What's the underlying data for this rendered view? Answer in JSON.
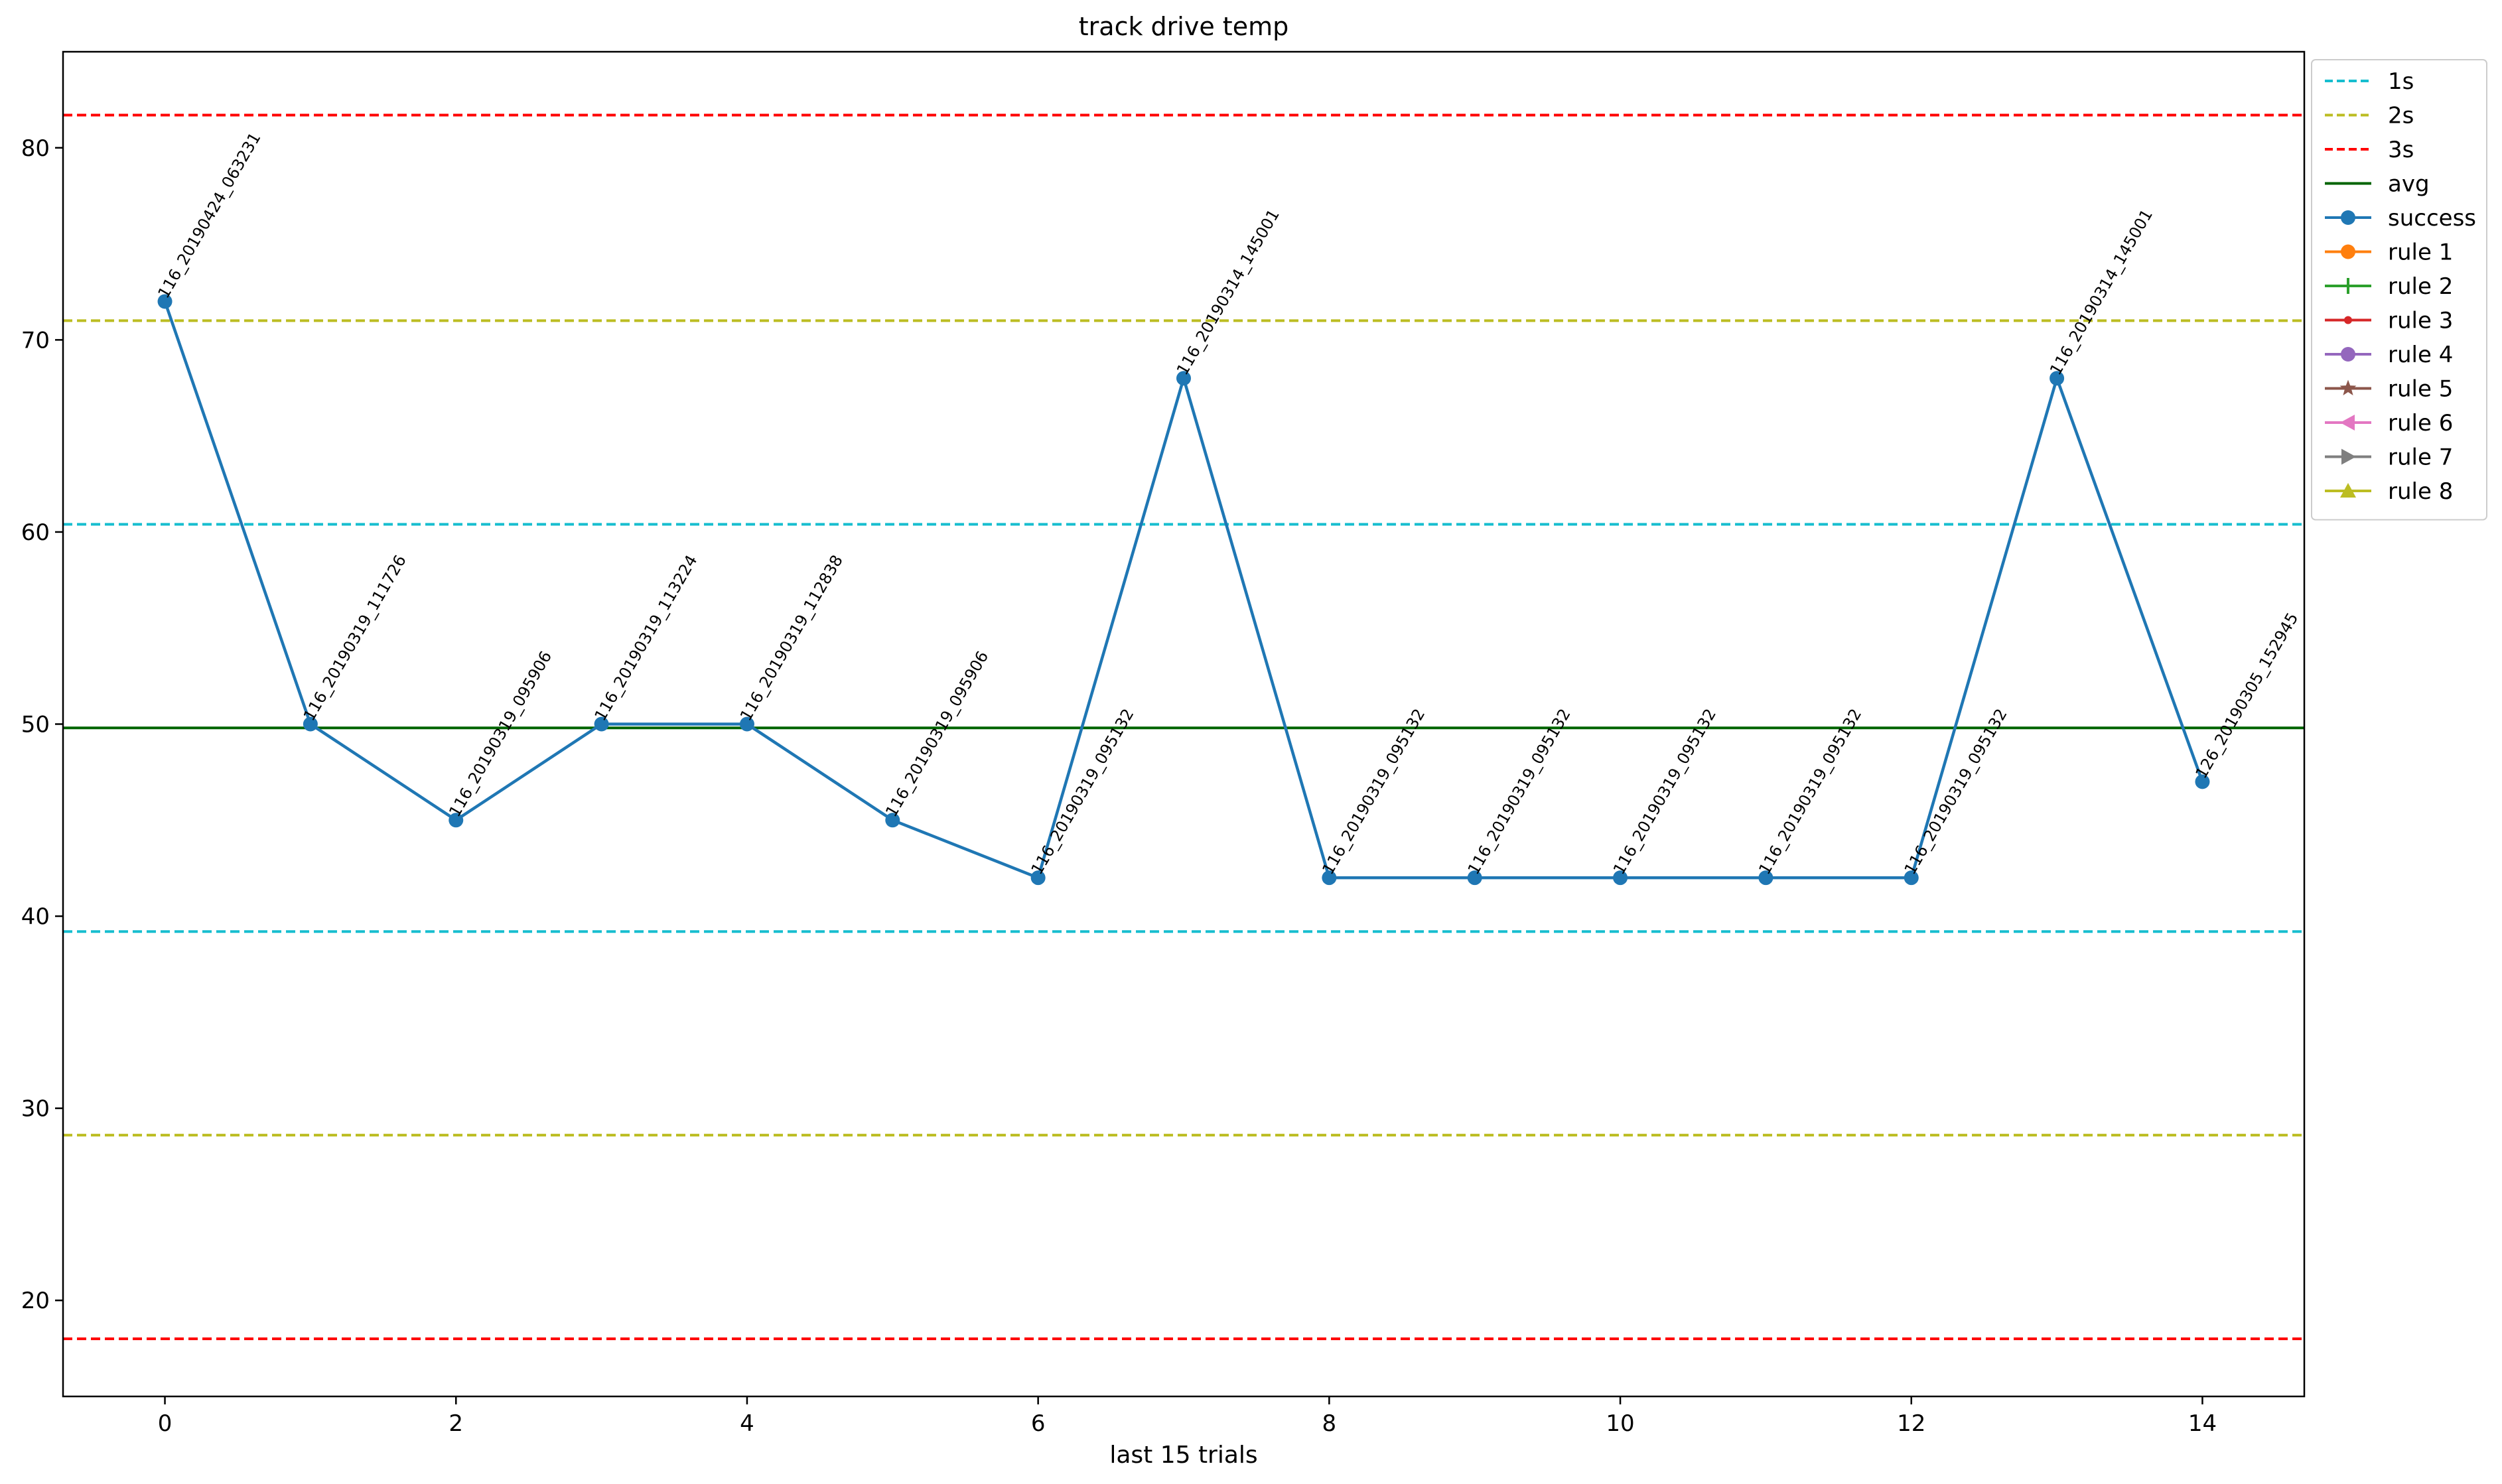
{
  "chart_data": {
    "type": "line",
    "title": "track drive temp",
    "xlabel": "last 15 trials",
    "ylabel": "",
    "xlim": [
      -0.7,
      14.7
    ],
    "ylim": [
      15,
      85
    ],
    "xticks": [
      0,
      2,
      4,
      6,
      8,
      10,
      12,
      14
    ],
    "yticks": [
      20,
      30,
      40,
      50,
      60,
      70,
      80
    ],
    "grid": false,
    "legend_position": "outside right, top",
    "reference_lines": [
      {
        "name": "1s",
        "style": "dashed",
        "color": "#17becf",
        "values": [
          60.4,
          39.2
        ]
      },
      {
        "name": "2s",
        "style": "dashed",
        "color": "#bcbd22",
        "values": [
          71.0,
          28.6
        ]
      },
      {
        "name": "3s",
        "style": "dashed",
        "color": "#ff0000",
        "values": [
          81.7,
          18.0
        ]
      },
      {
        "name": "avg",
        "style": "solid",
        "color": "#006400",
        "values": [
          49.8
        ]
      }
    ],
    "series": [
      {
        "name": "success",
        "color": "#1f77b4",
        "x": [
          0,
          1,
          2,
          3,
          4,
          5,
          6,
          7,
          8,
          9,
          10,
          11,
          12,
          13,
          14
        ],
        "y": [
          72,
          50,
          45,
          50,
          50,
          45,
          42,
          68,
          42,
          42,
          42,
          42,
          42,
          68,
          47
        ],
        "point_labels": [
          "116_20190424_063231",
          "116_20190319_111726",
          "116_20190319_095906",
          "116_20190319_113224",
          "116_20190319_112838",
          "116_20190319_095906",
          "116_20190319_095132",
          "116_20190314_145001",
          "116_20190319_095132",
          "116_20190319_095132",
          "116_20190319_095132",
          "116_20190319_095132",
          "116_20190319_095132",
          "116_20190314_145001",
          "126_20190305_152945"
        ]
      }
    ],
    "legend": [
      {
        "label": "1s",
        "color": "#17becf",
        "style": "dashed",
        "marker": "none"
      },
      {
        "label": "2s",
        "color": "#bcbd22",
        "style": "dashed",
        "marker": "none"
      },
      {
        "label": "3s",
        "color": "#ff0000",
        "style": "dashed",
        "marker": "none"
      },
      {
        "label": "avg",
        "color": "#006400",
        "style": "solid",
        "marker": "none"
      },
      {
        "label": "success",
        "color": "#1f77b4",
        "style": "solid",
        "marker": "circle"
      },
      {
        "label": "rule 1",
        "color": "#ff7f0e",
        "style": "solid",
        "marker": "circle"
      },
      {
        "label": "rule 2",
        "color": "#2ca02c",
        "style": "solid",
        "marker": "plus"
      },
      {
        "label": "rule 3",
        "color": "#d62728",
        "style": "solid",
        "marker": "point"
      },
      {
        "label": "rule 4",
        "color": "#9467bd",
        "style": "solid",
        "marker": "circle"
      },
      {
        "label": "rule 5",
        "color": "#8c564b",
        "style": "solid",
        "marker": "star"
      },
      {
        "label": "rule 6",
        "color": "#e377c2",
        "style": "solid",
        "marker": "triangle-left"
      },
      {
        "label": "rule 7",
        "color": "#7f7f7f",
        "style": "solid",
        "marker": "triangle-right"
      },
      {
        "label": "rule 8",
        "color": "#bcbd22",
        "style": "solid",
        "marker": "triangle-up"
      }
    ]
  }
}
